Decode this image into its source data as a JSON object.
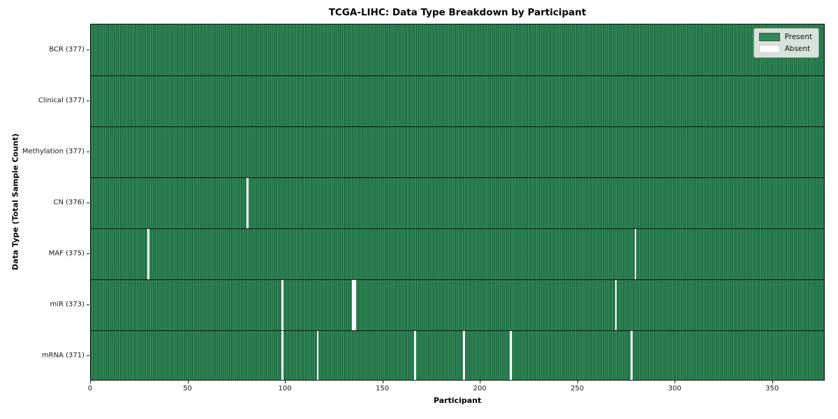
{
  "chart_data": {
    "type": "heatmap",
    "title": "TCGA-LIHC: Data Type Breakdown by Participant",
    "xlabel": "Participant",
    "ylabel": "Data Type (Total Sample Count)",
    "n_participants": 377,
    "xlim": [
      0,
      377
    ],
    "x_ticks": [
      0,
      50,
      100,
      150,
      200,
      250,
      300,
      350
    ],
    "grid": false,
    "legend_position": "upper right",
    "legend": [
      {
        "label": "Present",
        "color": "#2e8b57"
      },
      {
        "label": "Absent",
        "color": "#ffffff"
      }
    ],
    "colors": {
      "present": "#2e8b57",
      "absent": "#ffffff",
      "cell_edge": "#12301f",
      "row_boundary": "#000000",
      "legend_bg": "#eef3ee"
    },
    "rows": [
      {
        "label": "BCR (377)",
        "total": 377,
        "absent_participants": []
      },
      {
        "label": "Clinical (377)",
        "total": 377,
        "absent_participants": []
      },
      {
        "label": "Methylation (377)",
        "total": 377,
        "absent_participants": []
      },
      {
        "label": "CN (376)",
        "total": 376,
        "absent_participants": [
          80
        ]
      },
      {
        "label": "MAF (375)",
        "total": 375,
        "absent_participants": [
          29,
          279
        ]
      },
      {
        "label": "miR (373)",
        "total": 373,
        "absent_participants": [
          98,
          134,
          135,
          269
        ]
      },
      {
        "label": "mRNA (371)",
        "total": 371,
        "absent_participants": [
          98,
          116,
          166,
          191,
          215,
          277
        ]
      }
    ]
  }
}
